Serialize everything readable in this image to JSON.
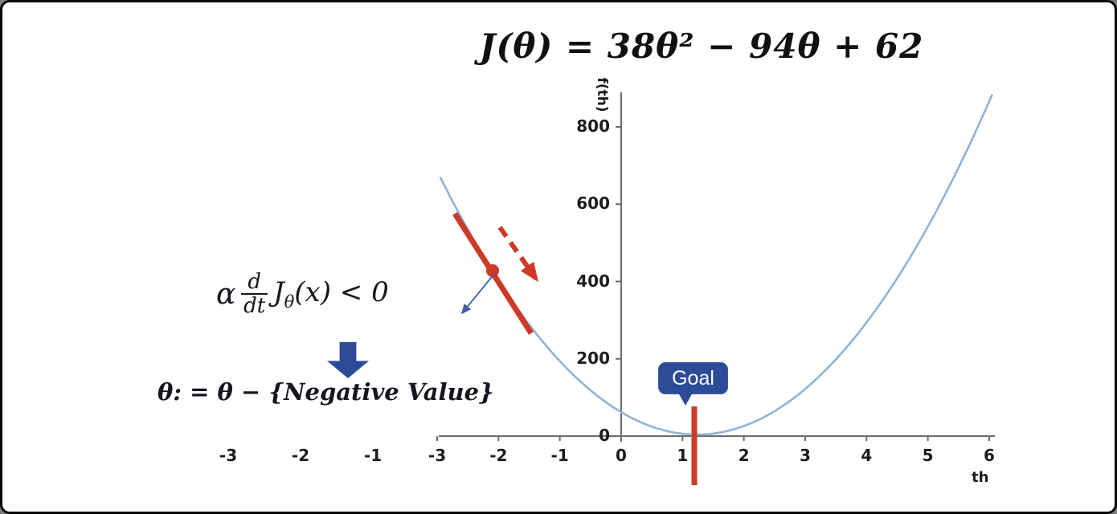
{
  "chart_data": {
    "type": "line",
    "title": "J(θ) = 38θ² − 94θ + 62",
    "equation": {
      "a": 38,
      "b": -94,
      "c": 62,
      "variable": "θ"
    },
    "series": [
      {
        "name": "J(θ)",
        "x": [
          -3,
          -2,
          -1,
          0,
          1,
          2,
          3,
          4,
          5,
          6
        ],
        "y": [
          686,
          402,
          194,
          62,
          6,
          26,
          122,
          294,
          542,
          866
        ]
      }
    ],
    "xlabel": "th",
    "ylabel": "f(th)",
    "xlim": [
      -3,
      6
    ],
    "ylim": [
      0,
      880
    ],
    "x_ticks": [
      "-3",
      "-2",
      "-1",
      "0",
      "1",
      "2",
      "3",
      "4",
      "5",
      "6"
    ],
    "y_ticks": [
      "0",
      "200",
      "400",
      "600",
      "800"
    ],
    "stray_x_labels": [
      "-3",
      "-2",
      "-1"
    ],
    "minimum": {
      "theta": 1.237,
      "value": 3.9
    },
    "grid": false,
    "legend": false,
    "curve_color": "#8fb3d8",
    "axis_color": "#6b6b6b"
  },
  "annotations": {
    "gradient_formula": {
      "alpha": "α",
      "numerator": "d",
      "denominator": "dt",
      "function_name": "J",
      "function_sub": "θ",
      "rest": "(x) < 0"
    },
    "update_formula": "θ: = θ − {Negative Value}",
    "goal_label": "Goal",
    "colors": {
      "red": "#cd3a27",
      "blue": "#2d4b97",
      "arrow_blue": "#3f5fa8"
    }
  }
}
